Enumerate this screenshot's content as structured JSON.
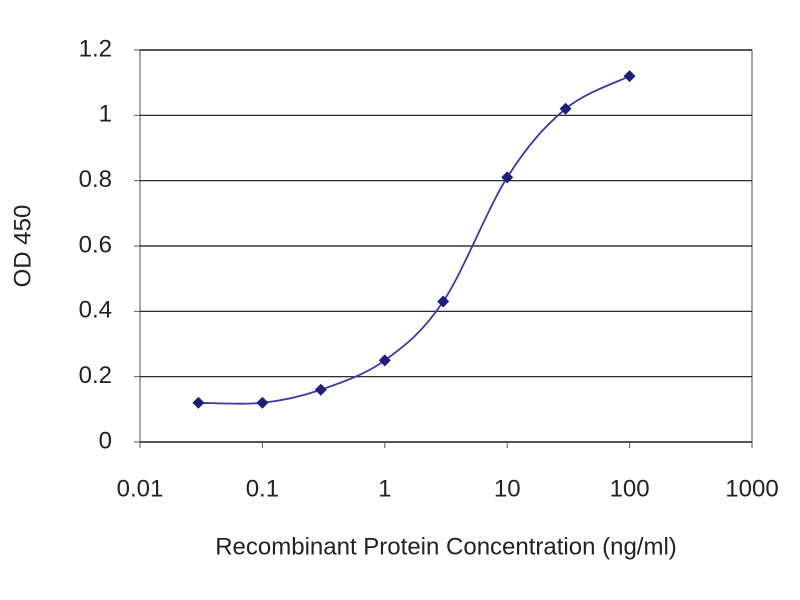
{
  "chart_data": {
    "type": "line",
    "log_x": true,
    "x": [
      0.03,
      0.1,
      0.3,
      1,
      3,
      10,
      30,
      100
    ],
    "series": [
      {
        "color": "#1f1f7a",
        "values": [
          0.12,
          0.12,
          0.16,
          0.25,
          0.43,
          0.81,
          1.02,
          1.12
        ]
      }
    ],
    "xlim": [
      0.01,
      1000
    ],
    "xticks": [
      0.01,
      0.1,
      1,
      10,
      100,
      1000
    ],
    "ylim": [
      0,
      1.2
    ],
    "yticks": [
      0,
      0.2,
      0.4,
      0.6,
      0.8,
      1,
      1.2
    ],
    "grid": true,
    "ylabel": "OD 450",
    "xlabel": "Recombinant Protein Concentration (ng/ml)"
  }
}
